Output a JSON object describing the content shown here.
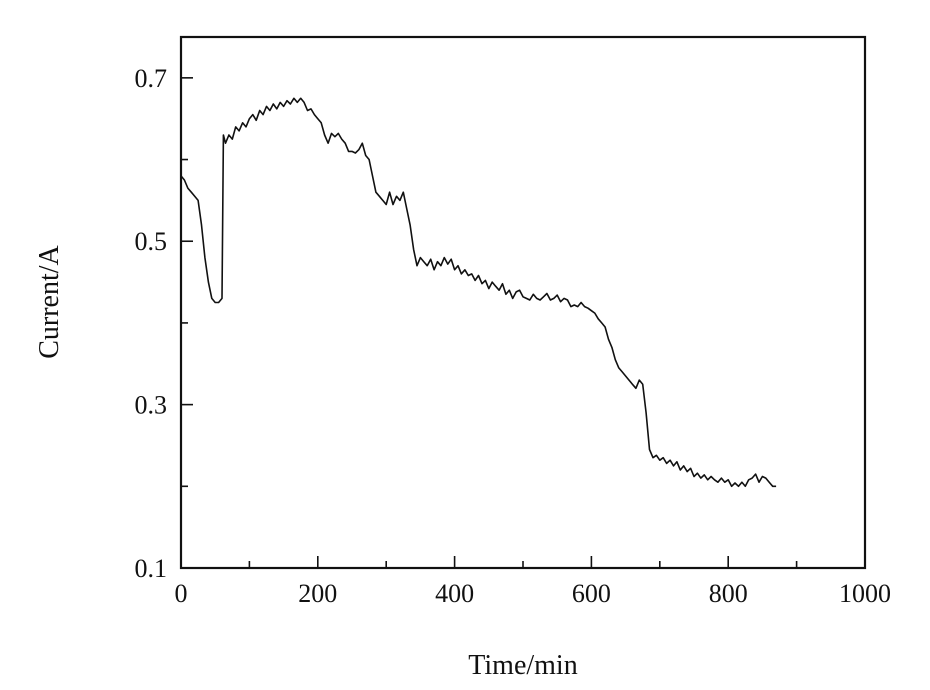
{
  "chart_data": {
    "type": "line",
    "xlabel": "Time/min",
    "ylabel": "Current/A",
    "xlim": [
      0,
      1000
    ],
    "ylim": [
      0.1,
      0.75
    ],
    "x_ticks": [
      0,
      200,
      400,
      600,
      800,
      1000
    ],
    "x_tick_labels": [
      "0",
      "200",
      "400",
      "600",
      "800",
      "1000"
    ],
    "y_ticks": [
      0.1,
      0.3,
      0.5,
      0.7
    ],
    "y_tick_labels": [
      "0.1",
      "0.3",
      "0.5",
      "0.7"
    ],
    "x_minor_step": 100,
    "y_minor_step": 0.1,
    "grid": false,
    "legend": "none",
    "line_color": "#111111",
    "series": [
      {
        "x": [
          0,
          5,
          10,
          15,
          20,
          25,
          30,
          35,
          40,
          45,
          50,
          55,
          60,
          62,
          65,
          70,
          75,
          80,
          85,
          90,
          95,
          100,
          105,
          110,
          115,
          120,
          125,
          130,
          135,
          140,
          145,
          150,
          155,
          160,
          165,
          170,
          175,
          180,
          185,
          190,
          195,
          200,
          205,
          210,
          215,
          220,
          225,
          230,
          235,
          240,
          245,
          250,
          255,
          260,
          265,
          270,
          275,
          280,
          285,
          290,
          295,
          300,
          305,
          310,
          315,
          320,
          325,
          330,
          335,
          340,
          345,
          350,
          355,
          360,
          365,
          370,
          375,
          380,
          385,
          390,
          395,
          400,
          405,
          410,
          415,
          420,
          425,
          430,
          435,
          440,
          445,
          450,
          455,
          460,
          465,
          470,
          475,
          480,
          485,
          490,
          495,
          500,
          505,
          510,
          515,
          520,
          525,
          530,
          535,
          540,
          545,
          550,
          555,
          560,
          565,
          570,
          575,
          580,
          585,
          590,
          595,
          600,
          605,
          610,
          615,
          620,
          625,
          630,
          635,
          640,
          645,
          650,
          655,
          660,
          665,
          670,
          675,
          680,
          685,
          690,
          695,
          700,
          705,
          710,
          715,
          720,
          725,
          730,
          735,
          740,
          745,
          750,
          755,
          760,
          765,
          770,
          775,
          780,
          785,
          790,
          795,
          800,
          805,
          810,
          815,
          820,
          825,
          830,
          835,
          840,
          845,
          850,
          855,
          860,
          865,
          870
        ],
        "values": [
          0.58,
          0.575,
          0.565,
          0.56,
          0.555,
          0.55,
          0.52,
          0.48,
          0.45,
          0.43,
          0.425,
          0.425,
          0.43,
          0.63,
          0.62,
          0.63,
          0.625,
          0.64,
          0.635,
          0.645,
          0.64,
          0.65,
          0.655,
          0.648,
          0.66,
          0.655,
          0.665,
          0.66,
          0.668,
          0.662,
          0.67,
          0.665,
          0.672,
          0.668,
          0.675,
          0.67,
          0.675,
          0.67,
          0.66,
          0.662,
          0.655,
          0.65,
          0.645,
          0.63,
          0.62,
          0.632,
          0.628,
          0.632,
          0.625,
          0.62,
          0.61,
          0.61,
          0.608,
          0.612,
          0.62,
          0.605,
          0.6,
          0.58,
          0.56,
          0.555,
          0.55,
          0.545,
          0.56,
          0.545,
          0.555,
          0.55,
          0.56,
          0.54,
          0.52,
          0.49,
          0.47,
          0.48,
          0.475,
          0.47,
          0.478,
          0.465,
          0.475,
          0.47,
          0.48,
          0.472,
          0.478,
          0.465,
          0.47,
          0.46,
          0.465,
          0.458,
          0.46,
          0.452,
          0.458,
          0.448,
          0.452,
          0.442,
          0.45,
          0.445,
          0.44,
          0.448,
          0.435,
          0.44,
          0.43,
          0.438,
          0.44,
          0.432,
          0.43,
          0.428,
          0.435,
          0.43,
          0.428,
          0.432,
          0.436,
          0.428,
          0.43,
          0.434,
          0.426,
          0.43,
          0.428,
          0.42,
          0.422,
          0.42,
          0.425,
          0.42,
          0.418,
          0.415,
          0.412,
          0.405,
          0.4,
          0.395,
          0.38,
          0.37,
          0.355,
          0.345,
          0.34,
          0.335,
          0.33,
          0.325,
          0.32,
          0.33,
          0.325,
          0.29,
          0.245,
          0.235,
          0.238,
          0.232,
          0.235,
          0.228,
          0.232,
          0.225,
          0.23,
          0.22,
          0.225,
          0.218,
          0.222,
          0.212,
          0.216,
          0.21,
          0.214,
          0.208,
          0.212,
          0.208,
          0.205,
          0.21,
          0.205,
          0.208,
          0.2,
          0.204,
          0.2,
          0.205,
          0.2,
          0.208,
          0.21,
          0.215,
          0.205,
          0.212,
          0.21,
          0.205,
          0.2,
          0.2
        ]
      }
    ]
  }
}
